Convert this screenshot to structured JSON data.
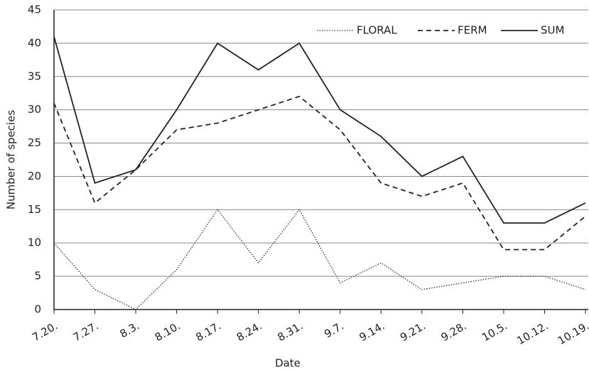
{
  "chart_data": {
    "type": "line",
    "x_label": "Date",
    "y_label": "Number of species",
    "categories": [
      "7.20.",
      "7.27.",
      "8.3.",
      "8.10.",
      "8.17.",
      "8.24.",
      "8.31.",
      "9.7.",
      "9.14.",
      "9.21.",
      "9.28.",
      "10.5.",
      "10.12.",
      "10.19."
    ],
    "series": [
      {
        "name": "FLORAL",
        "color": "#333333",
        "style": "dotted",
        "values": [
          10,
          3,
          0,
          6,
          15,
          7,
          15,
          4,
          7,
          3,
          4,
          5,
          5,
          3
        ]
      },
      {
        "name": "FERM",
        "color": "#222222",
        "style": "dashed",
        "values": [
          31,
          16,
          21,
          27,
          28,
          30,
          32,
          27,
          19,
          17,
          19,
          9,
          9,
          14
        ]
      },
      {
        "name": "SUM",
        "color": "#222222",
        "style": "solid",
        "values": [
          41,
          19,
          21,
          30,
          40,
          36,
          40,
          30,
          26,
          20,
          23,
          13,
          13,
          16
        ]
      }
    ],
    "ylim": [
      0,
      45
    ],
    "yticks": [
      0,
      5,
      10,
      15,
      20,
      25,
      30,
      35,
      40,
      45
    ],
    "grid": true,
    "legend": "top-right"
  }
}
